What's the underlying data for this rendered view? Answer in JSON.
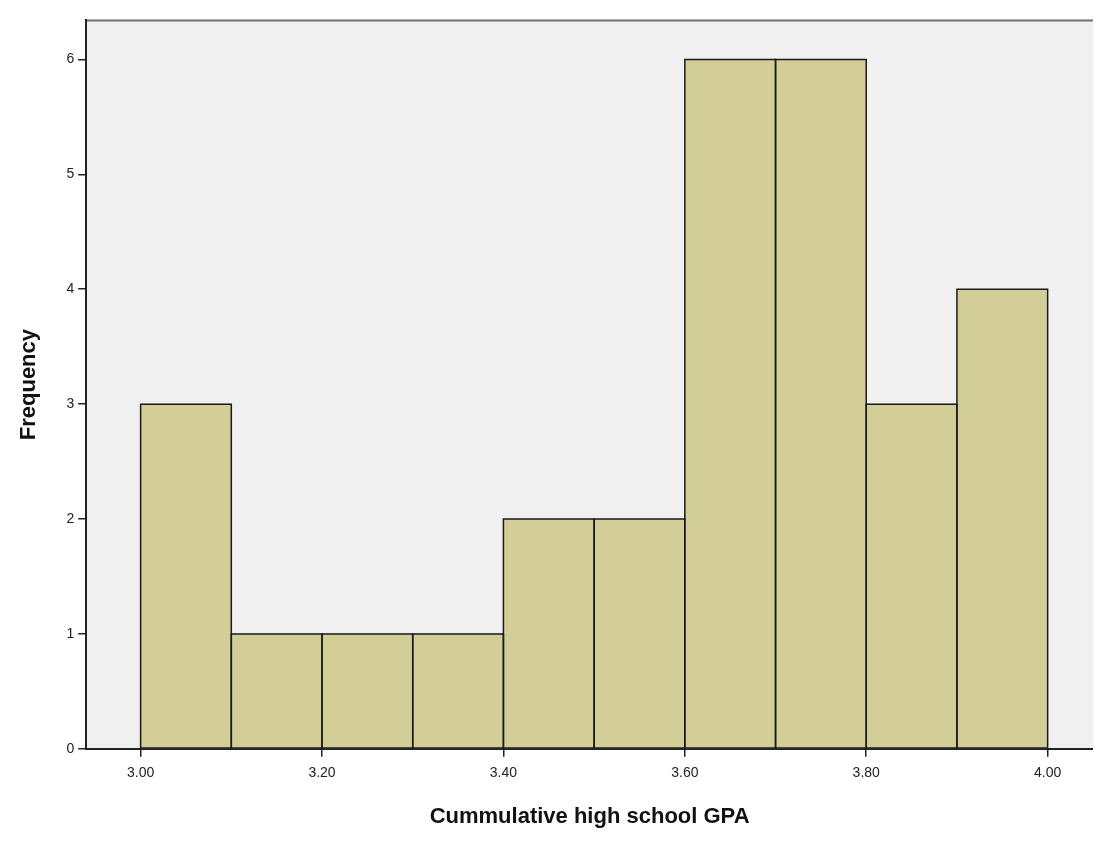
{
  "chart_data": {
    "type": "histogram",
    "xlabel": "Cummulative high school GPA",
    "ylabel": "Frequency",
    "bins": [
      3.0,
      3.1,
      3.2,
      3.3,
      3.4,
      3.5,
      3.6,
      3.7,
      3.8,
      3.9,
      4.0
    ],
    "values": [
      3,
      1,
      1,
      1,
      2,
      2,
      6,
      6,
      3,
      4
    ],
    "color": "#d3ce97",
    "xlim": [
      2.94,
      4.05
    ],
    "xticks": [
      {
        "value": 3.0,
        "label": "3.00"
      },
      {
        "value": 3.2,
        "label": "3.20"
      },
      {
        "value": 3.4,
        "label": "3.40"
      },
      {
        "value": 3.6,
        "label": "3.60"
      },
      {
        "value": 3.8,
        "label": "3.80"
      },
      {
        "value": 4.0,
        "label": "4.00"
      }
    ],
    "ylim": [
      0,
      6.34
    ],
    "yticks": [
      0,
      1,
      2,
      3,
      4,
      5,
      6
    ],
    "grid": false
  }
}
